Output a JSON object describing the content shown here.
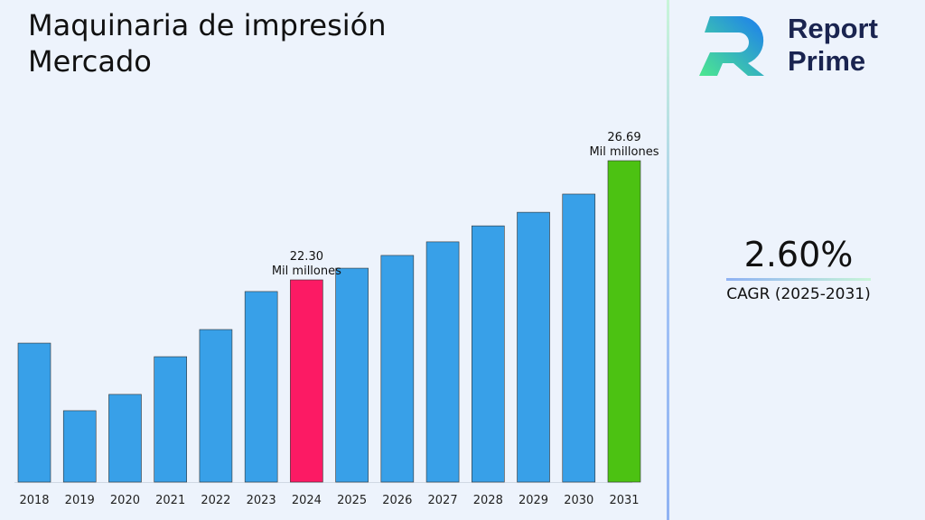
{
  "title": "Maquinaria de impresión Mercado",
  "logo": {
    "line1": "Report",
    "line2": "Prime"
  },
  "cagr": {
    "value": "2.60%",
    "label": "CAGR (2025-2031)"
  },
  "colors": {
    "bar": "#38a0e8",
    "highlight_2024": "#fc1a64",
    "highlight_2031": "#4cc212"
  },
  "chart_data": {
    "type": "bar",
    "categories": [
      "2018",
      "2019",
      "2020",
      "2021",
      "2022",
      "2023",
      "2024",
      "2025",
      "2026",
      "2027",
      "2028",
      "2029",
      "2030",
      "2031"
    ],
    "values": [
      19.97,
      17.48,
      18.08,
      19.47,
      20.47,
      21.87,
      22.3,
      22.73,
      23.2,
      23.7,
      24.29,
      24.79,
      25.46,
      26.69
    ],
    "ylim": [
      14.85,
      27.5
    ],
    "unit": "Mil millones",
    "data_labels": [
      {
        "category": "2024",
        "value": "22.30",
        "unit": "Mil millones"
      },
      {
        "category": "2031",
        "value": "26.69",
        "unit": "Mil millones"
      }
    ],
    "grid": false
  }
}
